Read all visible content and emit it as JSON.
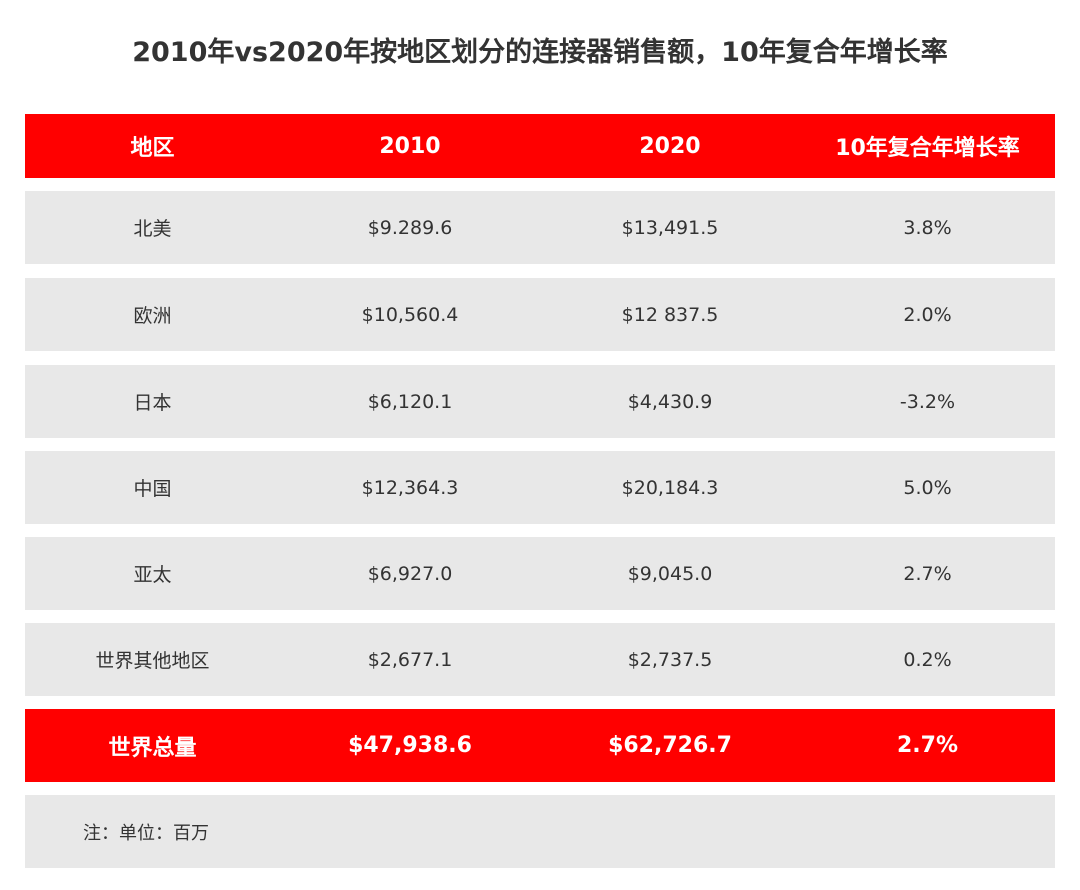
{
  "title": "2010年vs2020年按地区划分的连接器销售额，10年复合年增长率",
  "colors": {
    "accent": "#ff0000",
    "row_bg": "#e8e8e8",
    "text": "#333333"
  },
  "table": {
    "headers": [
      "地区",
      "2010",
      "2020",
      "10年复合年增长率"
    ],
    "rows": [
      {
        "region": "北美",
        "y2010": "$9.289.6",
        "y2020": "$13,491.5",
        "cagr": "3.8%"
      },
      {
        "region": "欧洲",
        "y2010": "$10,560.4",
        "y2020": "$12 837.5",
        "cagr": "2.0%"
      },
      {
        "region": "日本",
        "y2010": "$6,120.1",
        "y2020": "$4,430.9",
        "cagr": "-3.2%"
      },
      {
        "region": "中国",
        "y2010": "$12,364.3",
        "y2020": "$20,184.3",
        "cagr": "5.0%"
      },
      {
        "region": "亚太",
        "y2010": "$6,927.0",
        "y2020": "$9,045.0",
        "cagr": "2.7%"
      },
      {
        "region": "世界其他地区",
        "y2010": "$2,677.1",
        "y2020": "$2,737.5",
        "cagr": "0.2%"
      }
    ],
    "total": {
      "region": "世界总量",
      "y2010": "$47,938.6",
      "y2020": "$62,726.7",
      "cagr": "2.7%"
    }
  },
  "note": "注：单位：百万"
}
